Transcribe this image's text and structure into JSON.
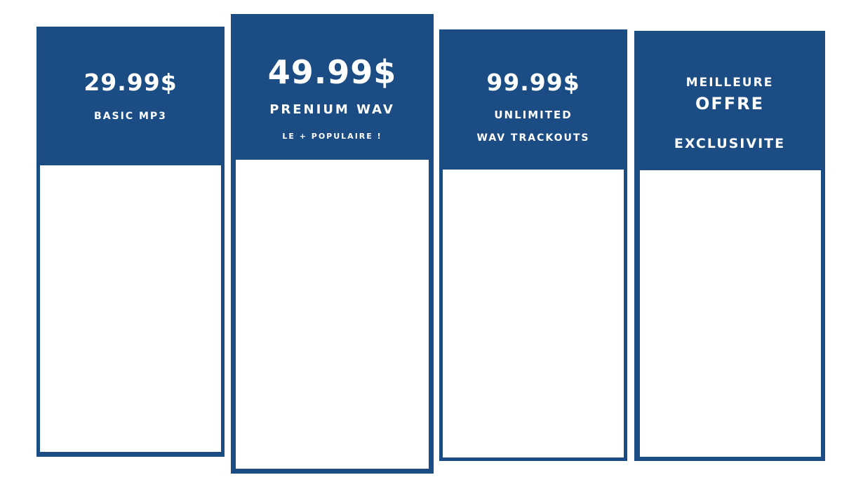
{
  "colors": {
    "card_blue": "#1b4d84",
    "panel_white": "#ffffff",
    "text": "#ffffff"
  },
  "plans": [
    {
      "price": "29.99$",
      "name": "BASIC MP3"
    },
    {
      "price": "49.99$",
      "name": "PRENIUM WAV",
      "note": "LE + POPULAIRE !"
    },
    {
      "price": "99.99$",
      "name": "UNLIMITED",
      "note": "WAV TRACKOUTS"
    },
    {
      "label_top": "MEILLEURE",
      "label_main": "OFFRE",
      "name": "EXCLUSIVITE"
    }
  ]
}
